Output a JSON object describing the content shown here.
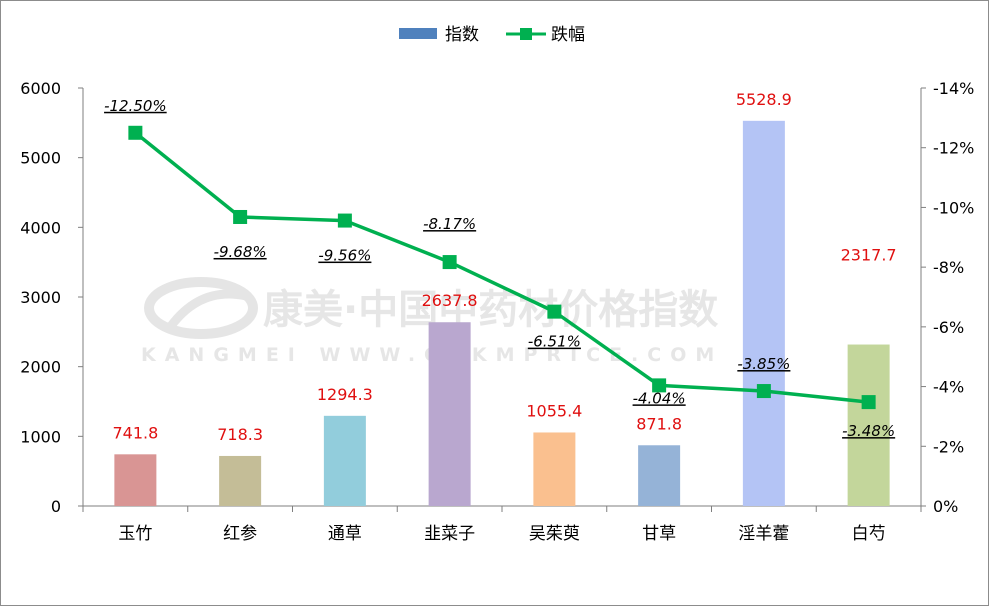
{
  "chart_data": {
    "type": "bar+line",
    "categories": [
      "玉竹",
      "红参",
      "通草",
      "韭菜子",
      "吴茱萸",
      "甘草",
      "淫羊藿",
      "白芍"
    ],
    "series": [
      {
        "name": "指数",
        "type": "bar",
        "axis": "left",
        "values": [
          741.8,
          718.3,
          1294.3,
          2637.8,
          1055.4,
          871.8,
          5528.9,
          2317.7
        ],
        "labels": [
          "741.8",
          "718.3",
          "1294.3",
          "2637.8",
          "1055.4",
          "871.8",
          "5528.9",
          "2317.7"
        ],
        "colors": [
          "#d99594",
          "#c4bd97",
          "#92cddc",
          "#b9a7cf",
          "#fac08f",
          "#95b3d7",
          "#b4c4f5",
          "#c3d69b"
        ]
      },
      {
        "name": "跌幅",
        "type": "line",
        "axis": "right",
        "values": [
          -12.5,
          -9.68,
          -9.56,
          -8.17,
          -6.51,
          -4.04,
          -3.85,
          -3.48
        ],
        "labels": [
          "-12.50%",
          "-9.68%",
          "-9.56%",
          "-8.17%",
          "-6.51%",
          "-4.04%",
          "-3.85%",
          "-3.48%"
        ],
        "color": "#00b050"
      }
    ],
    "y_left": {
      "min": 0,
      "max": 6000,
      "ticks": [
        "0",
        "1000",
        "2000",
        "3000",
        "4000",
        "5000",
        "6000"
      ]
    },
    "y_right": {
      "min": 0,
      "max": -14,
      "ticks": [
        "0%",
        "-2%",
        "-4%",
        "-6%",
        "-8%",
        "-10%",
        "-12%",
        "-14%"
      ]
    },
    "legend": "top-center",
    "grid": false
  },
  "watermark": {
    "line1": "康美·中国中药材价格指数",
    "line2": "KANGMEI WWW.CNKMPRICE.COM"
  },
  "colors": {
    "line": "#00b050",
    "marker": "#00b050",
    "value_label": "#e01010",
    "legend_bar": "#4f81bd"
  }
}
